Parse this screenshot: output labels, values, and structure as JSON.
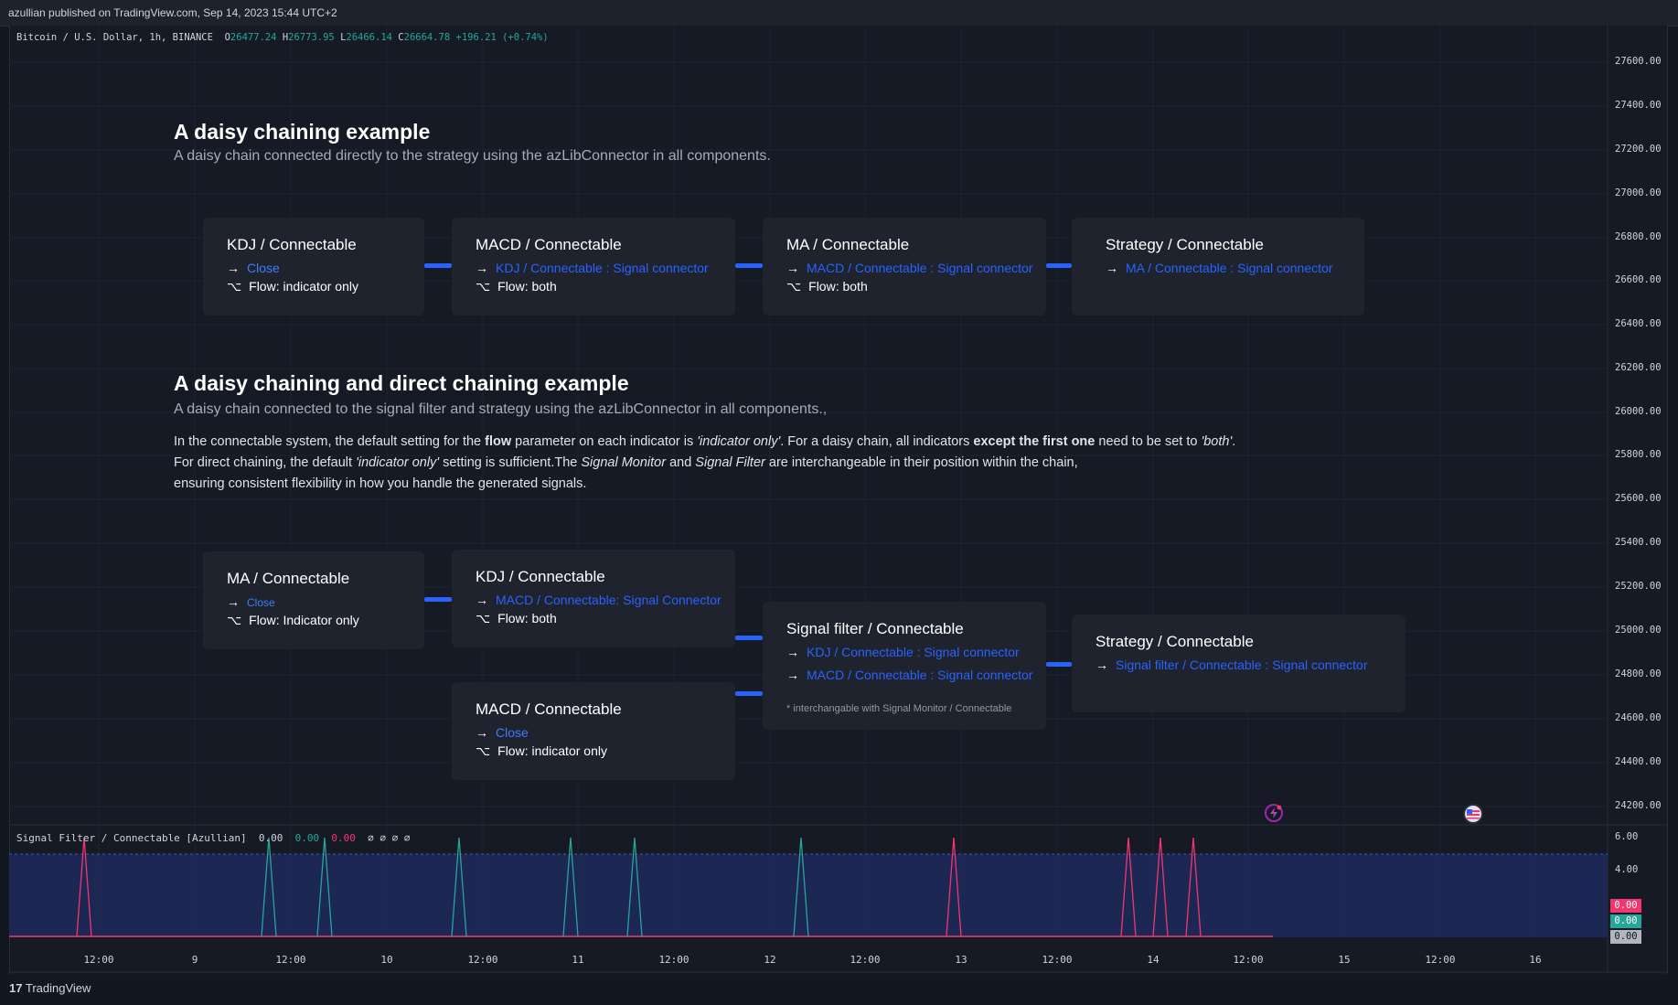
{
  "header": {
    "published": "azullian published on TradingView.com, Sep 14, 2023 15:44 UTC+2"
  },
  "symbol": {
    "name": "Bitcoin / U.S. Dollar, 1h, BINANCE",
    "o_label": "O",
    "o": "26477.24",
    "h_label": "H",
    "h": "26773.95",
    "l_label": "L",
    "l": "26466.14",
    "c_label": "C",
    "c": "26664.78",
    "change": "+196.21 (+0.74%)"
  },
  "price_axis": [
    "27600.00",
    "27400.00",
    "27200.00",
    "27000.00",
    "26800.00",
    "26600.00",
    "26400.00",
    "26200.00",
    "26000.00",
    "25800.00",
    "25600.00",
    "25400.00",
    "25200.00",
    "25000.00",
    "24800.00",
    "24600.00",
    "24400.00",
    "24200.00"
  ],
  "sub_axis": [
    "6.00",
    "4.00"
  ],
  "time_axis": [
    "12:00",
    "9",
    "12:00",
    "10",
    "12:00",
    "11",
    "12:00",
    "12",
    "12:00",
    "13",
    "12:00",
    "14",
    "12:00",
    "15",
    "12:00",
    "16"
  ],
  "section1": {
    "title": "A daisy chaining example",
    "subtitle": "A daisy chain connected directly to the strategy using the azLibConnector in all components.",
    "boxes": [
      {
        "title": "KDJ / Connectable",
        "link": "Close",
        "flow": "Flow: indicator only"
      },
      {
        "title": "MACD / Connectable",
        "link": "KDJ / Connectable : Signal connector",
        "flow": "Flow: both"
      },
      {
        "title": "MA / Connectable",
        "link": "MACD / Connectable : Signal connector",
        "flow": "Flow: both"
      },
      {
        "title": "Strategy / Connectable",
        "link": "MA / Connectable : Signal connector"
      }
    ]
  },
  "section2": {
    "title": "A daisy chaining and direct chaining example",
    "subtitle": "A daisy chain connected to the signal filter and strategy using the azLibConnector in all components.,",
    "para1": {
      "a": "In the connectable system, the default setting for the ",
      "b": "flow",
      "c": " parameter on each indicator is ",
      "d": "'indicator only'",
      "e": ". For a daisy chain, all indicators ",
      "f": "except the first one",
      "g": " need to be set to ",
      "h": "'both'",
      "i": "."
    },
    "para2": {
      "a": "For direct chaining, the default ",
      "b": "'indicator only'",
      "c": " setting is sufficient.The ",
      "d": "Signal Monitor",
      "e": " and ",
      "f": "Signal Filter",
      "g": " are interchangeable in their position within the chain,"
    },
    "para3": "ensuring consistent flexibility in how you handle the generated signals.",
    "ma": {
      "title": "MA / Connectable",
      "link": "Close",
      "flow": "Flow: Indicator only"
    },
    "kdj": {
      "title": "KDJ / Connectable",
      "link": "MACD / Connectable: Signal Connector",
      "flow": "Flow: both"
    },
    "macd": {
      "title": "MACD / Connectable",
      "link": "Close",
      "flow": "Flow: indicator only"
    },
    "filter": {
      "title": "Signal filter / Connectable",
      "link1": "KDJ / Connectable : Signal connector",
      "link2": "MACD / Connectable : Signal connector",
      "note": "* interchangable with Signal Monitor / Connectable"
    },
    "strategy": {
      "title": "Strategy / Connectable",
      "link": "Signal filter / Connectable : Signal connector"
    }
  },
  "symbols": {
    "arrow": "→",
    "flow_icon": "⌥"
  },
  "subpane": {
    "name": "Signal Filter / Connectable [Azullian]",
    "v1": "0.00",
    "v2": "0.00",
    "v3": "0.00",
    "rest": "∅ ∅ ∅ ∅",
    "badges": [
      "0.00",
      "0.00",
      "0.00"
    ]
  },
  "footer": {
    "brand": "TradingView",
    "logo": "17"
  },
  "colors": {
    "accent": "#2962ff",
    "green": "#26a69a",
    "pink": "#f23670"
  }
}
